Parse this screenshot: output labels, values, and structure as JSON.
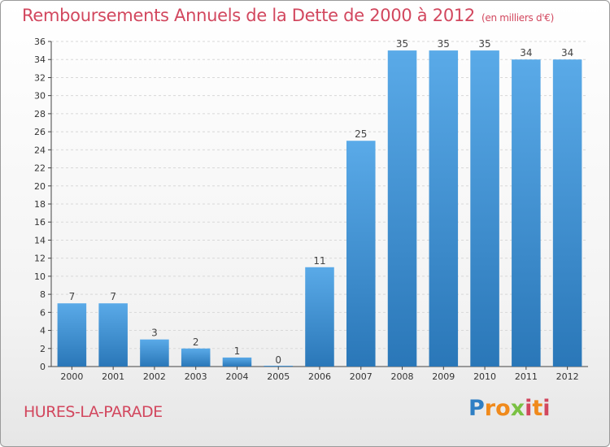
{
  "chart_data": {
    "type": "bar",
    "title": "Remboursements Annuels de la Dette de 2000 à 2012",
    "subtitle": "(en milliers d'€)",
    "categories": [
      "2000",
      "2001",
      "2002",
      "2003",
      "2004",
      "2005",
      "2006",
      "2007",
      "2008",
      "2009",
      "2010",
      "2011",
      "2012"
    ],
    "values": [
      7,
      7,
      3,
      2,
      1,
      0,
      11,
      25,
      35,
      35,
      35,
      34,
      34
    ],
    "data_labels": [
      "7",
      "7",
      "3",
      "2",
      "1",
      "0",
      "11",
      "25",
      "35",
      "35",
      "35",
      "34",
      "34"
    ],
    "ylim": [
      0,
      36
    ],
    "yticks": [
      0,
      2,
      4,
      6,
      8,
      10,
      12,
      14,
      16,
      18,
      20,
      22,
      24,
      26,
      28,
      30,
      32,
      34,
      36
    ],
    "xlabel": "",
    "ylabel": "",
    "grid": true,
    "colors": {
      "bar_light": "#5aaae8",
      "bar_dark": "#2a77b8",
      "grid": "#d8d8d8",
      "title": "#d2475e"
    }
  },
  "commune": "HURES-LA-PARADE",
  "logo": {
    "letters": [
      "P",
      "r",
      "o",
      "x",
      "i",
      "t",
      "i"
    ],
    "colors": [
      "#2f7fc4",
      "#f08a1c",
      "#f08a1c",
      "#7ac143",
      "#d2475e",
      "#f08a1c",
      "#d2475e"
    ]
  }
}
